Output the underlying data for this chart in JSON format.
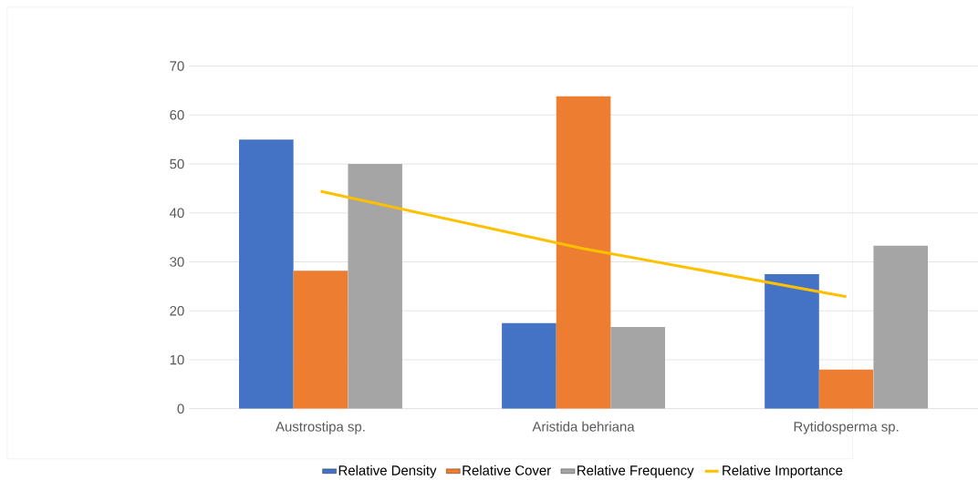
{
  "chart_data": {
    "type": "bar",
    "categories": [
      "Austrostipa sp.",
      "Aristida behriana",
      "Rytidosperma sp."
    ],
    "series": [
      {
        "name": "Relative Density",
        "color": "#4472c4",
        "values": [
          55,
          17.5,
          27.5
        ]
      },
      {
        "name": "Relative Cover",
        "color": "#ed7d31",
        "values": [
          28.2,
          63.8,
          8
        ]
      },
      {
        "name": "Relative Frequency",
        "color": "#a5a5a5",
        "values": [
          50,
          16.7,
          33.3
        ]
      },
      {
        "name": "Relative Importance",
        "color": "#ffc000",
        "type": "line",
        "values": [
          44.4,
          32.7,
          22.9
        ]
      }
    ],
    "ylim": [
      0,
      70
    ],
    "yticks": [
      0,
      10,
      20,
      30,
      40,
      50,
      60,
      70
    ],
    "grid": "y",
    "legend": "bottom"
  }
}
